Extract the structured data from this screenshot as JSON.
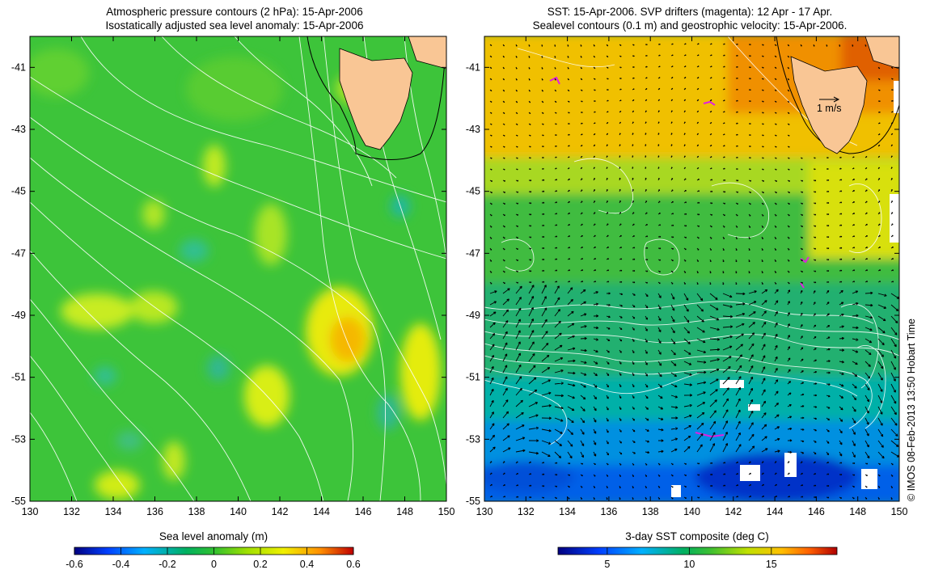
{
  "left_panel": {
    "title_line1": "Atmospheric pressure contours (2 hPa): 15-Apr-2006",
    "title_line2": "Isostatically adjusted sea level anomaly: 15-Apr-2006",
    "x_ticks": [
      "130",
      "132",
      "134",
      "136",
      "138",
      "140",
      "142",
      "144",
      "146",
      "148",
      "150"
    ],
    "y_ticks": [
      "-41",
      "-43",
      "-45",
      "-47",
      "-49",
      "-51",
      "-53",
      "-55"
    ],
    "colorbar": {
      "title": "Sea level anomaly (m)",
      "ticks": [
        "-0.6",
        "-0.4",
        "-0.2",
        "0",
        "0.2",
        "0.4",
        "0.6"
      ],
      "range": [
        -0.6,
        0.6
      ]
    }
  },
  "right_panel": {
    "title_line1": "SST: 15-Apr-2006. SVP drifters (magenta): 12 Apr - 17 Apr.",
    "title_line2": "Sealevel contours (0.1 m) and geostrophic velocity: 15-Apr-2006.",
    "x_ticks": [
      "130",
      "132",
      "134",
      "136",
      "138",
      "140",
      "142",
      "144",
      "146",
      "148",
      "150"
    ],
    "y_ticks": [
      "-41",
      "-43",
      "-45",
      "-47",
      "-49",
      "-51",
      "-53",
      "-55"
    ],
    "velocity_scale_label": "1 m/s",
    "colorbar": {
      "title": "3-day SST composite (deg C)",
      "ticks": [
        "5",
        "10",
        "15"
      ],
      "range": [
        2,
        19
      ]
    }
  },
  "credit": "© IMOS 08-Feb-2013 13:50 Hobart Time",
  "map_extent": {
    "lon": [
      130,
      150
    ],
    "lat": [
      -55,
      -40
    ]
  },
  "colors": {
    "land": "#f9c695",
    "drifter": "#e020e0",
    "contour": "#ffffff"
  }
}
